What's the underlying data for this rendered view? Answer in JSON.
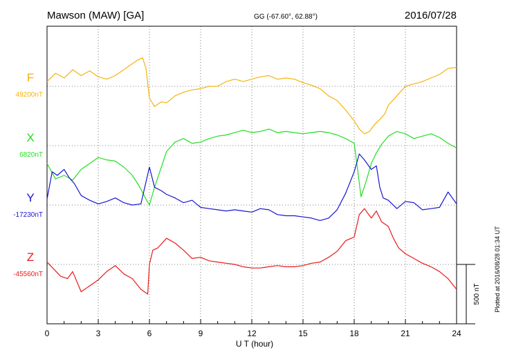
{
  "header": {
    "title": "Mawson (MAW)  [GA]",
    "coords": "GG (-67.60°,  62.88°)",
    "date": "2016/07/28"
  },
  "side_note": "Plotted at 2016/08/28 01:34 UT",
  "scale_label": "500 nT",
  "chart_data": {
    "type": "line",
    "xlabel": "U T (hour)",
    "xlim": [
      0,
      24
    ],
    "x_ticks": [
      "0",
      "3",
      "6",
      "9",
      "12",
      "15",
      "18",
      "21",
      "24"
    ],
    "y_unit": "nT",
    "panel_range_nT": [
      -500,
      500
    ],
    "grid": true,
    "colors": {
      "F": "#f5b20c",
      "X": "#22dd22",
      "Y": "#1515d0",
      "Z": "#e81818"
    },
    "series": [
      {
        "name": "F",
        "baseline": "49200nT",
        "x": [
          0,
          0.5,
          1,
          1.5,
          2,
          2.5,
          3,
          3.5,
          4,
          4.5,
          5,
          5.3,
          5.6,
          5.8,
          6,
          6.3,
          6.7,
          7,
          7.5,
          8,
          8.5,
          9,
          9.5,
          10,
          10.5,
          11,
          11.5,
          12,
          12.5,
          13,
          13.5,
          14,
          14.5,
          15,
          15.5,
          16,
          16.5,
          17,
          17.5,
          18,
          18.3,
          18.6,
          18.9,
          19.2,
          19.5,
          19.8,
          20,
          20.5,
          21,
          21.5,
          22,
          22.5,
          23,
          23.5,
          24
        ],
        "y": [
          40,
          110,
          70,
          140,
          90,
          130,
          80,
          60,
          90,
          140,
          190,
          220,
          240,
          150,
          -100,
          -170,
          -130,
          -140,
          -80,
          -50,
          -30,
          -20,
          0,
          0,
          40,
          60,
          40,
          60,
          80,
          90,
          60,
          70,
          60,
          30,
          10,
          -20,
          -80,
          -120,
          -200,
          -290,
          -360,
          -400,
          -380,
          -320,
          -280,
          -230,
          -160,
          -80,
          0,
          20,
          40,
          70,
          100,
          150,
          160
        ]
      },
      {
        "name": "X",
        "baseline": "6820nT",
        "x": [
          0,
          0.5,
          1,
          1.5,
          2,
          2.5,
          3,
          3.5,
          4,
          4.5,
          5,
          5.4,
          5.8,
          6,
          6.3,
          6.7,
          7,
          7.5,
          8,
          8.5,
          9,
          9.5,
          10,
          10.5,
          11,
          11.5,
          12,
          12.5,
          13,
          13.5,
          14,
          14.5,
          15,
          15.5,
          16,
          16.5,
          17,
          17.5,
          18,
          18.2,
          18.4,
          18.7,
          19,
          19.3,
          19.6,
          20,
          20.5,
          21,
          21.5,
          22,
          22.5,
          23,
          23.5,
          24
        ],
        "y": [
          -150,
          -280,
          -250,
          -290,
          -200,
          -150,
          -100,
          -120,
          -130,
          -180,
          -250,
          -340,
          -450,
          -500,
          -350,
          -180,
          -50,
          30,
          60,
          20,
          30,
          60,
          80,
          90,
          110,
          130,
          110,
          120,
          140,
          110,
          120,
          110,
          100,
          110,
          120,
          110,
          90,
          60,
          20,
          -200,
          -430,
          -300,
          -150,
          -60,
          10,
          80,
          120,
          100,
          60,
          80,
          100,
          70,
          20,
          -20
        ]
      },
      {
        "name": "Y",
        "baseline": "-17230nT",
        "x": [
          0,
          0.3,
          0.6,
          1,
          1.3,
          1.6,
          2,
          2.5,
          3,
          3.5,
          4,
          4.5,
          5,
          5.5,
          6,
          6.3,
          6.7,
          7,
          7.5,
          8,
          8.5,
          9,
          9.5,
          10,
          10.5,
          11,
          11.5,
          12,
          12.5,
          13,
          13.5,
          14,
          14.5,
          15,
          15.5,
          16,
          16.5,
          17,
          17.5,
          18,
          18.3,
          18.6,
          19,
          19.3,
          19.5,
          19.7,
          20,
          20.5,
          21,
          21.5,
          22,
          22.5,
          23,
          23.5,
          24
        ],
        "y": [
          50,
          280,
          250,
          300,
          230,
          180,
          80,
          40,
          10,
          30,
          60,
          20,
          0,
          10,
          320,
          150,
          120,
          90,
          60,
          20,
          40,
          -20,
          -30,
          -40,
          -50,
          -40,
          -50,
          -60,
          -30,
          -40,
          -80,
          -90,
          -90,
          -100,
          -110,
          -130,
          -110,
          -40,
          100,
          280,
          430,
          380,
          300,
          330,
          150,
          60,
          40,
          -30,
          30,
          20,
          -40,
          -30,
          -20,
          110,
          10
        ]
      },
      {
        "name": "Z",
        "baseline": "-45560nT",
        "x": [
          0,
          0.4,
          0.8,
          1.2,
          1.5,
          2,
          2.5,
          3,
          3.5,
          4,
          4.5,
          5,
          5.5,
          5.9,
          6,
          6.2,
          6.5,
          7,
          7.5,
          8,
          8.5,
          9,
          9.5,
          10,
          10.5,
          11,
          11.5,
          12,
          12.5,
          13,
          13.5,
          14,
          14.5,
          15,
          15.5,
          16,
          16.5,
          17,
          17.5,
          18,
          18.3,
          18.6,
          19,
          19.3,
          19.6,
          20,
          20.3,
          20.6,
          21,
          21.5,
          22,
          22.5,
          23,
          23.5,
          24
        ],
        "y": [
          20,
          -40,
          -100,
          -120,
          -60,
          -230,
          -180,
          -130,
          -60,
          -10,
          -80,
          -120,
          -210,
          -250,
          0,
          120,
          140,
          220,
          180,
          120,
          50,
          60,
          30,
          20,
          10,
          0,
          -20,
          -30,
          -30,
          -20,
          -10,
          -20,
          -20,
          -10,
          10,
          20,
          60,
          110,
          200,
          230,
          420,
          470,
          390,
          450,
          360,
          320,
          220,
          140,
          90,
          50,
          10,
          -20,
          -60,
          -120,
          -210
        ]
      }
    ]
  }
}
